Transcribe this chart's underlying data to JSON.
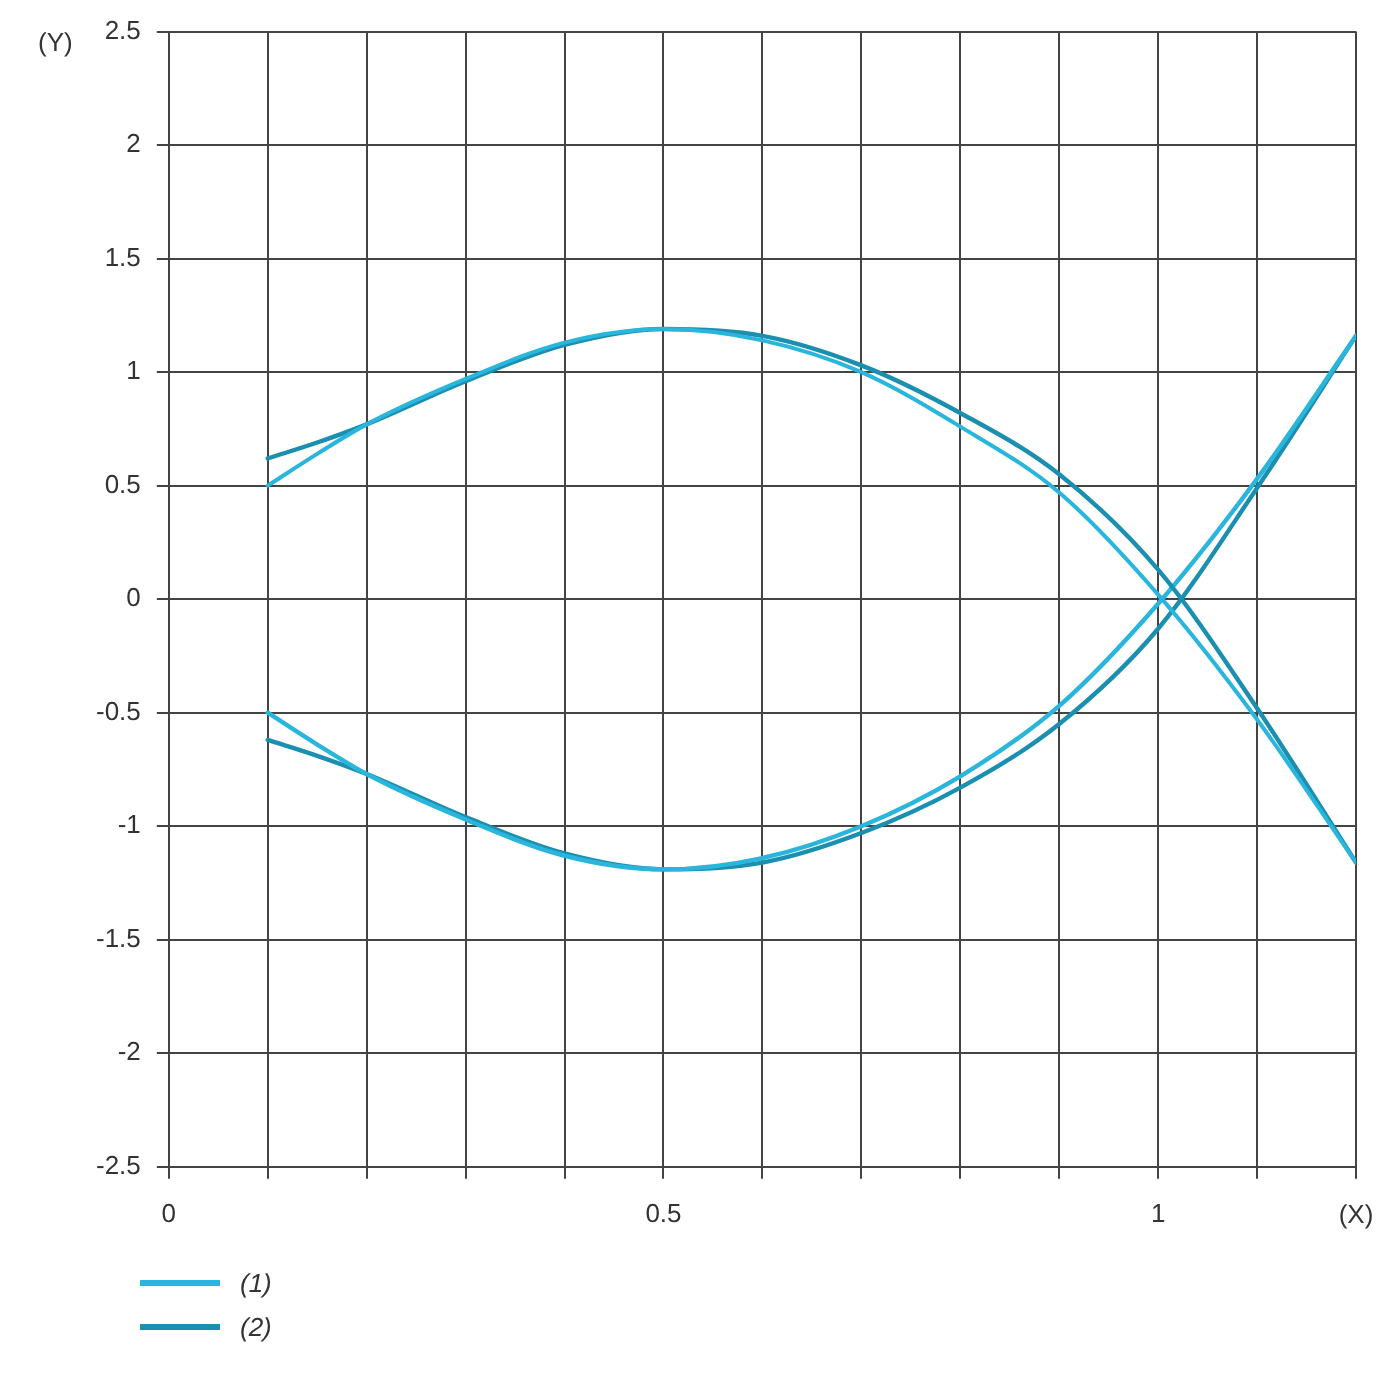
{
  "chart_data": {
    "type": "line",
    "xlabel": "(X)",
    "ylabel": "(Y)",
    "xlim": [
      0,
      1.2
    ],
    "ylim": [
      -2.5,
      2.5
    ],
    "xticks": [
      0,
      {
        "value": 0.1,
        "label": null
      },
      {
        "value": 0.2,
        "label": null
      },
      {
        "value": 0.3,
        "label": null
      },
      {
        "value": 0.4,
        "label": null
      },
      0.5,
      {
        "value": 0.6,
        "label": null
      },
      {
        "value": 0.7,
        "label": null
      },
      {
        "value": 0.8,
        "label": null
      },
      {
        "value": 0.9,
        "label": null
      },
      1,
      {
        "value": 1.1,
        "label": null
      },
      {
        "value": 1.2,
        "label": null
      }
    ],
    "yticks": [
      -2.5,
      -2,
      -1.5,
      -1,
      -0.5,
      0,
      0.5,
      1,
      1.5,
      2,
      2.5
    ],
    "grid": true,
    "legend": "bottom left",
    "marker": "none",
    "line_style": "solid",
    "series": [
      {
        "name": "(1)",
        "color": "#29b5dc",
        "x": [
          0.1,
          0.15,
          0.2,
          0.3,
          0.4,
          0.5,
          0.6,
          0.7,
          0.8,
          0.9,
          1.0,
          1.1,
          1.2
        ],
        "values": [
          0.5,
          0.64,
          0.77,
          0.97,
          1.13,
          1.19,
          1.14,
          1.0,
          0.76,
          0.47,
          0.02,
          -0.53,
          -1.16
        ]
      },
      {
        "name": "(2)",
        "color": "#1a8fb0",
        "x": [
          0.1,
          0.15,
          0.2,
          0.3,
          0.4,
          0.5,
          0.6,
          0.7,
          0.8,
          0.9,
          1.0,
          1.1,
          1.2
        ],
        "values": [
          0.62,
          0.69,
          0.77,
          0.96,
          1.12,
          1.19,
          1.16,
          1.03,
          0.82,
          0.55,
          0.13,
          -0.48,
          -1.16
        ]
      },
      {
        "color": "#29b5dc",
        "x": [
          0.1,
          0.15,
          0.2,
          0.3,
          0.4,
          0.5,
          0.6,
          0.7,
          0.8,
          0.9,
          1.0,
          1.1,
          1.2
        ],
        "values": [
          -0.5,
          -0.64,
          -0.77,
          -0.97,
          -1.13,
          -1.19,
          -1.14,
          -1.0,
          -0.78,
          -0.47,
          -0.02,
          0.53,
          1.16
        ]
      },
      {
        "color": "#1a8fb0",
        "x": [
          0.1,
          0.15,
          0.2,
          0.3,
          0.4,
          0.5,
          0.6,
          0.7,
          0.8,
          0.9,
          1.0,
          1.1,
          1.2
        ],
        "values": [
          -0.62,
          -0.69,
          -0.77,
          -0.96,
          -1.12,
          -1.19,
          -1.16,
          -1.03,
          -0.83,
          -0.55,
          -0.13,
          0.49,
          1.16
        ]
      }
    ]
  }
}
